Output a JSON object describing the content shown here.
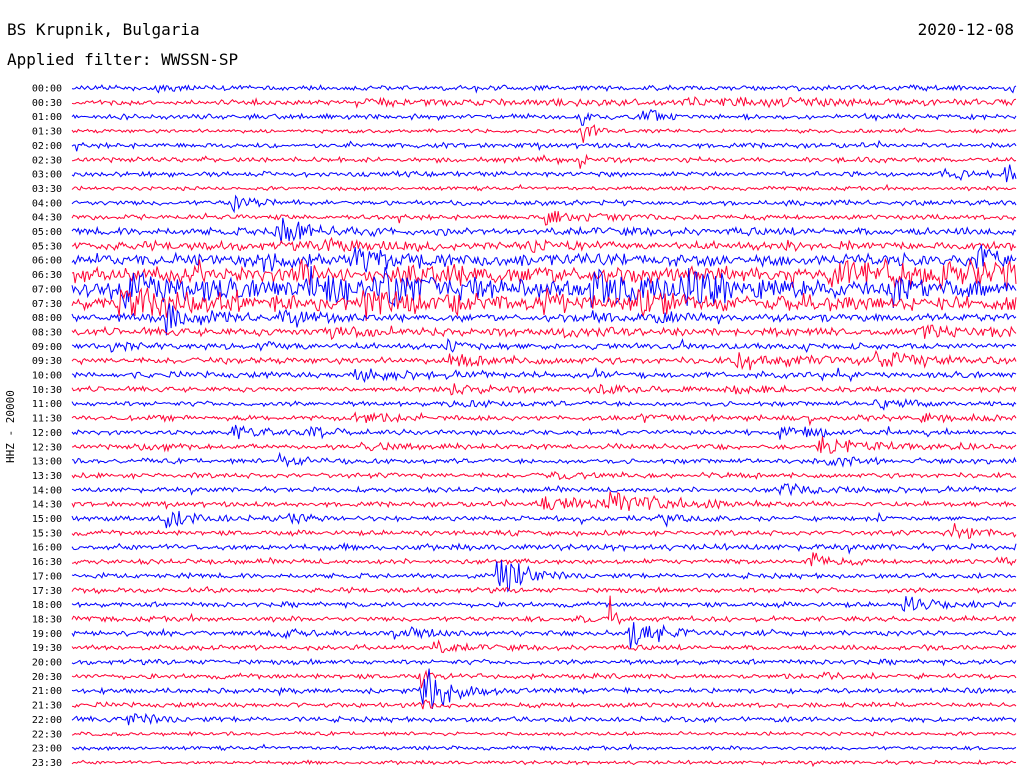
{
  "header": {
    "station": "BS Krupnik, Bulgaria",
    "filter": "Applied filter: WWSSN-SP",
    "date": "2020-12-08"
  },
  "chart_data": {
    "type": "line",
    "title": "BS Krupnik, Bulgaria",
    "date": "2020-12-08",
    "filter": "Applied filter: WWSSN-SP",
    "ylabel": "HHZ - 20000",
    "xlabel": "",
    "row_interval": "30 minutes",
    "colors": [
      "#0000ff",
      "#ff0033"
    ],
    "noise_level": [
      2,
      2,
      2,
      1.5,
      2,
      2,
      2,
      1.5,
      2,
      2,
      3,
      3.5,
      5,
      6,
      6,
      5,
      3,
      3,
      2.5,
      2.5,
      2.5,
      2,
      2,
      2,
      2,
      2,
      2,
      2,
      2,
      2,
      2,
      2,
      2.5,
      2,
      2,
      2,
      2,
      2,
      2,
      2,
      2,
      2,
      2,
      2,
      2,
      1.5,
      1.5,
      1.5
    ],
    "series": [
      {
        "time": "00:00",
        "events": [
          [
            0.09,
            4,
            0.02
          ]
        ]
      },
      {
        "time": "00:30",
        "events": [
          [
            0.3,
            2,
            0.3
          ],
          [
            0.65,
            2,
            0.3
          ]
        ]
      },
      {
        "time": "01:00",
        "events": [
          [
            0.54,
            10,
            0.005
          ],
          [
            0.605,
            10,
            0.01
          ]
        ]
      },
      {
        "time": "01:30",
        "events": [
          [
            0.54,
            30,
            0.003
          ],
          [
            0.55,
            6,
            0.01
          ]
        ]
      },
      {
        "time": "02:00",
        "events": []
      },
      {
        "time": "02:30",
        "events": [
          [
            0.54,
            20,
            0.002
          ]
        ]
      },
      {
        "time": "03:00",
        "events": [
          [
            0.92,
            3,
            0.03
          ],
          [
            0.99,
            18,
            0.008
          ]
        ]
      },
      {
        "time": "03:30",
        "events": []
      },
      {
        "time": "04:00",
        "events": [
          [
            0.17,
            6,
            0.02
          ]
        ]
      },
      {
        "time": "04:30",
        "events": [
          [
            0.5,
            5,
            0.06
          ]
        ]
      },
      {
        "time": "05:00",
        "events": [
          [
            0.215,
            16,
            0.03
          ]
        ]
      },
      {
        "time": "05:30",
        "events": [
          [
            0.27,
            4,
            0.04
          ],
          [
            0.48,
            4,
            0.03
          ]
        ]
      },
      {
        "time": "06:00",
        "events": [
          [
            0.2,
            10,
            0.02
          ],
          [
            0.3,
            7,
            0.05
          ],
          [
            0.96,
            8,
            0.02
          ]
        ]
      },
      {
        "time": "06:30",
        "events": [
          [
            0.235,
            14,
            0.01
          ],
          [
            0.35,
            6,
            0.1
          ],
          [
            0.8,
            10,
            0.1
          ],
          [
            0.92,
            10,
            0.06
          ],
          [
            0.98,
            8,
            0.02
          ]
        ]
      },
      {
        "time": "07:00",
        "events": [
          [
            0.05,
            12,
            0.1
          ],
          [
            0.25,
            14,
            0.05
          ],
          [
            0.33,
            12,
            0.06
          ],
          [
            0.55,
            13,
            0.08
          ],
          [
            0.65,
            10,
            0.05
          ],
          [
            0.87,
            9,
            0.04
          ]
        ]
      },
      {
        "time": "07:30",
        "events": [
          [
            0.05,
            12,
            0.08
          ],
          [
            0.3,
            12,
            0.05
          ],
          [
            0.4,
            8,
            0.03
          ],
          [
            0.5,
            8,
            0.03
          ],
          [
            0.6,
            10,
            0.05
          ],
          [
            0.75,
            6,
            0.04
          ]
        ]
      },
      {
        "time": "08:00",
        "events": [
          [
            0.1,
            9,
            0.04
          ],
          [
            0.22,
            7,
            0.04
          ],
          [
            0.55,
            5,
            0.03
          ],
          [
            0.62,
            6,
            0.02
          ]
        ]
      },
      {
        "time": "08:30",
        "events": [
          [
            0.27,
            4,
            0.03
          ],
          [
            0.5,
            4,
            0.05
          ],
          [
            0.9,
            5,
            0.05
          ]
        ]
      },
      {
        "time": "09:00",
        "events": [
          [
            0.04,
            4,
            0.03
          ],
          [
            0.2,
            3,
            0.03
          ],
          [
            0.4,
            3,
            0.03
          ]
        ]
      },
      {
        "time": "09:30",
        "events": [
          [
            0.4,
            4,
            0.06
          ],
          [
            0.7,
            6,
            0.06
          ],
          [
            0.85,
            6,
            0.05
          ]
        ]
      },
      {
        "time": "10:00",
        "events": [
          [
            0.3,
            5,
            0.05
          ]
        ]
      },
      {
        "time": "10:30",
        "events": [
          [
            0.4,
            3,
            0.05
          ],
          [
            0.55,
            3,
            0.05
          ],
          [
            0.7,
            3,
            0.05
          ]
        ]
      },
      {
        "time": "11:00",
        "events": [
          [
            0.4,
            3,
            0.04
          ],
          [
            0.85,
            3,
            0.05
          ]
        ]
      },
      {
        "time": "11:30",
        "events": [
          [
            0.3,
            4,
            0.04
          ],
          [
            0.6,
            3,
            0.05
          ],
          [
            0.9,
            4,
            0.04
          ]
        ]
      },
      {
        "time": "12:00",
        "events": [
          [
            0.17,
            8,
            0.02
          ],
          [
            0.25,
            4,
            0.03
          ],
          [
            0.75,
            5,
            0.05
          ]
        ]
      },
      {
        "time": "12:30",
        "events": [
          [
            0.07,
            3,
            0.03
          ],
          [
            0.3,
            3,
            0.05
          ],
          [
            0.79,
            8,
            0.05
          ]
        ]
      },
      {
        "time": "13:00",
        "events": [
          [
            0.22,
            5,
            0.03
          ],
          [
            0.8,
            3,
            0.05
          ]
        ]
      },
      {
        "time": "13:30",
        "events": [
          [
            0.5,
            3,
            0.05
          ]
        ]
      },
      {
        "time": "14:00",
        "events": [
          [
            0.75,
            6,
            0.05
          ]
        ]
      },
      {
        "time": "14:30",
        "events": [
          [
            0.49,
            6,
            0.07
          ],
          [
            0.57,
            8,
            0.06
          ]
        ]
      },
      {
        "time": "15:00",
        "events": [
          [
            0.1,
            8,
            0.03
          ],
          [
            0.23,
            3,
            0.02
          ],
          [
            0.62,
            5,
            0.03
          ]
        ]
      },
      {
        "time": "15:30",
        "events": [
          [
            0.93,
            7,
            0.04
          ]
        ]
      },
      {
        "time": "16:00",
        "events": []
      },
      {
        "time": "16:30",
        "events": [
          [
            0.78,
            8,
            0.02
          ],
          [
            0.98,
            4,
            0.03
          ]
        ]
      },
      {
        "time": "17:00",
        "events": [
          [
            0.45,
            20,
            0.025
          ]
        ]
      },
      {
        "time": "17:30",
        "events": []
      },
      {
        "time": "18:00",
        "events": [
          [
            0.88,
            8,
            0.03
          ]
        ]
      },
      {
        "time": "18:30",
        "events": [
          [
            0.57,
            20,
            0.005
          ],
          [
            0.53,
            3,
            0.02
          ]
        ]
      },
      {
        "time": "19:00",
        "events": [
          [
            0.21,
            4,
            0.03
          ],
          [
            0.34,
            7,
            0.03
          ],
          [
            0.59,
            22,
            0.025
          ]
        ]
      },
      {
        "time": "19:30",
        "events": [
          [
            0.38,
            4,
            0.03
          ]
        ]
      },
      {
        "time": "20:00",
        "events": []
      },
      {
        "time": "20:30",
        "events": [
          [
            0.37,
            10,
            0.005
          ],
          [
            0.8,
            3,
            0.02
          ]
        ]
      },
      {
        "time": "21:00",
        "events": [
          [
            0.37,
            22,
            0.03
          ]
        ]
      },
      {
        "time": "21:30",
        "events": [
          [
            0.37,
            6,
            0.01
          ]
        ]
      },
      {
        "time": "22:00",
        "events": [
          [
            0.06,
            5,
            0.03
          ]
        ]
      },
      {
        "time": "22:30",
        "events": []
      },
      {
        "time": "23:00",
        "events": []
      },
      {
        "time": "23:30",
        "events": []
      }
    ]
  }
}
